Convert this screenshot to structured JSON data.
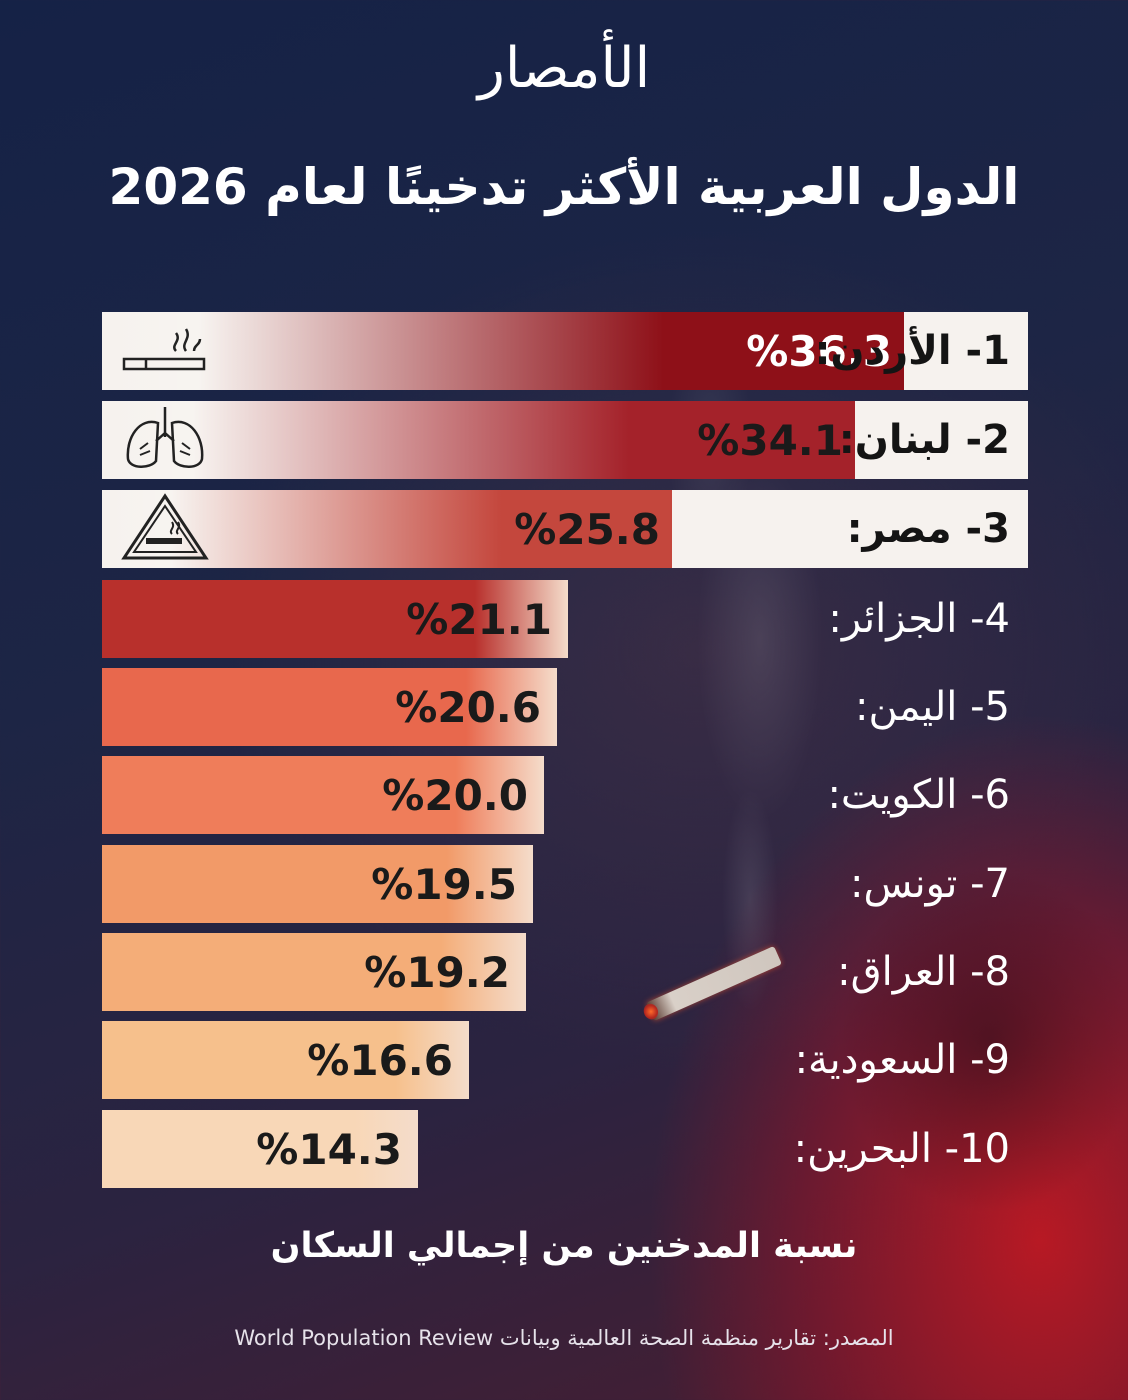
{
  "logo": "الأمصار",
  "title": "الدول العربية الأكثر تدخينًا لعام 2026",
  "subtitle": "نسبة المدخنين من إجمالي السكان",
  "source": "المصدر: تقارير منظمة الصحة العالمية وبيانات World Population Review",
  "colors": {
    "dark_red": "#8e1018",
    "red": "#c0362c",
    "orange": "#ef7f5b",
    "light_orange": "#f4b07a",
    "pale": "#f8d7b7"
  },
  "icons": [
    "cigarette-icon",
    "lungs-icon",
    "smoking-warning-icon"
  ],
  "chart_data": {
    "type": "bar",
    "title": "الدول العربية الأكثر تدخينًا لعام 2026",
    "ylabel": "نسبة المدخنين من إجمالي السكان",
    "categories": [
      "1- الأردن:",
      "2- لبنان:",
      "3- مصر:",
      "4- الجزائر:",
      "5- اليمن:",
      "6- الكويت:",
      "7- تونس:",
      "8- العراق:",
      "9- السعودية:",
      "10- البحرين:"
    ],
    "values": [
      36.3,
      34.1,
      25.8,
      21.1,
      20.6,
      20.0,
      19.5,
      19.2,
      16.6,
      14.3
    ],
    "value_labels": [
      "%36.3",
      "%34.1",
      "%25.8",
      "%21.1",
      "%20.6",
      "%20.0",
      "%19.5",
      "%19.2",
      "%16.6",
      "%14.3"
    ],
    "bar_colors": [
      "#8e1018",
      "#a4222a",
      "#c4473d",
      "#b8302c",
      "#e8684d",
      "#ef7d5a",
      "#f29a68",
      "#f4ad78",
      "#f6c08c",
      "#f8d7b7"
    ]
  }
}
